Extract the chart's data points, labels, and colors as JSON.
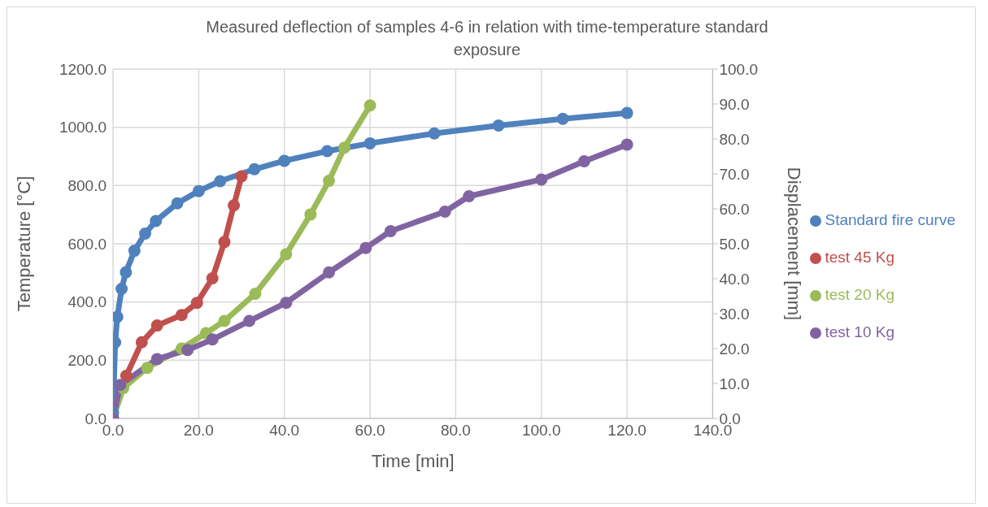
{
  "chart_data": {
    "type": "line",
    "title": "Measured deflection of samples 4-6 in relation with time-temperature standard exposure",
    "xlabel": "Time [min]",
    "ylabel": "Temperature [°C]",
    "y2label": "Displacement [mm]",
    "xlim": [
      0,
      140
    ],
    "xticks": [
      {
        "value": 0,
        "label": "0.0"
      },
      {
        "value": 20,
        "label": "20.0"
      },
      {
        "value": 40,
        "label": "40.0"
      },
      {
        "value": 60,
        "label": "60.0"
      },
      {
        "value": 80,
        "label": "80.0"
      },
      {
        "value": 100,
        "label": "100.0"
      },
      {
        "value": 120,
        "label": "120.0"
      },
      {
        "value": 140,
        "label": "140.0"
      }
    ],
    "ylim": [
      0,
      1200
    ],
    "yticks": [
      {
        "value": 0,
        "label": "0.0"
      },
      {
        "value": 200,
        "label": "200.0"
      },
      {
        "value": 400,
        "label": "400.0"
      },
      {
        "value": 600,
        "label": "600.0"
      },
      {
        "value": 800,
        "label": "800.0"
      },
      {
        "value": 1000,
        "label": "1000.0"
      },
      {
        "value": 1200,
        "label": "1200.0"
      }
    ],
    "y2lim": [
      0,
      100
    ],
    "y2ticks": [
      {
        "value": 0,
        "label": "0.0"
      },
      {
        "value": 10,
        "label": "10.0"
      },
      {
        "value": 20,
        "label": "20.0"
      },
      {
        "value": 30,
        "label": "30.0"
      },
      {
        "value": 40,
        "label": "40.0"
      },
      {
        "value": 50,
        "label": "50.0"
      },
      {
        "value": 60,
        "label": "60.0"
      },
      {
        "value": 70,
        "label": "70.0"
      },
      {
        "value": 80,
        "label": "80.0"
      },
      {
        "value": 90,
        "label": "90.0"
      },
      {
        "value": 100,
        "label": "100.0"
      }
    ],
    "grid": true,
    "legend": "right",
    "marker": "circle",
    "series": [
      {
        "name": "Standard fire curve",
        "color": "#4f81bd",
        "x": [
          0,
          0.5,
          1,
          2,
          3,
          5,
          7.5,
          10,
          15,
          20,
          25,
          33,
          40,
          50,
          60,
          75,
          90,
          105,
          120
        ],
        "values": [
          20,
          261,
          349,
          445,
          502,
          576,
          635,
          678,
          739,
          781,
          815,
          856,
          885,
          918,
          945,
          979,
          1006,
          1029,
          1049
        ]
      },
      {
        "name": "test 45 Kg",
        "color": "#c0504d",
        "axis": "y2",
        "x": [
          0,
          3.1,
          6.7,
          10.3,
          16,
          19.6,
          23.2,
          26,
          28.2,
          30
        ],
        "values": [
          0,
          12.2,
          21.8,
          26.6,
          29.6,
          33.1,
          40.1,
          50.5,
          61,
          69.3
        ]
      },
      {
        "name": "test 20 Kg",
        "color": "#9bbb59",
        "axis": "y2",
        "x": [
          0,
          2.4,
          8,
          16,
          21.7,
          26,
          33.2,
          40.4,
          46.1,
          50.4,
          54,
          60
        ],
        "values": [
          0,
          8.7,
          14.5,
          20,
          24.4,
          27.9,
          35.7,
          47,
          58.4,
          68,
          77.5,
          89.6
        ]
      },
      {
        "name": "test 10 Kg",
        "color": "#8064a2",
        "axis": "y2",
        "x": [
          0,
          1.7,
          10.3,
          17.4,
          23.2,
          31.8,
          40.4,
          50.4,
          59,
          64.8,
          77.5,
          83.1,
          100,
          110,
          120
        ],
        "values": [
          0,
          9.6,
          17,
          19.6,
          22.6,
          27.9,
          33.1,
          41.8,
          48.8,
          53.6,
          59.2,
          63.6,
          68.4,
          73.6,
          78.4
        ]
      }
    ]
  }
}
